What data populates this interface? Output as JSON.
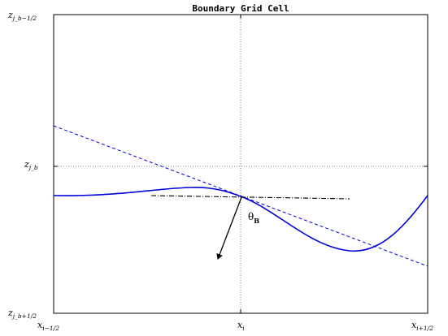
{
  "title": "Boundary Grid Cell",
  "y_ticks": [
    {
      "main": "z",
      "sub": "j_b−1/2"
    },
    {
      "main": "z",
      "sub": "j_b"
    },
    {
      "main": "z",
      "sub": "j_b+1/2"
    }
  ],
  "x_ticks": [
    {
      "main": "x",
      "sub": "i−1/2"
    },
    {
      "main": "x",
      "sub": "i"
    },
    {
      "main": "x",
      "sub": "i+1/2"
    }
  ],
  "annotation": {
    "symbol": "θ",
    "sub": "B"
  },
  "colors": {
    "curve": "#0000dd",
    "secant": "#0000dd",
    "tangent": "#000000",
    "normal": "#000000",
    "grid": "#555555"
  }
}
